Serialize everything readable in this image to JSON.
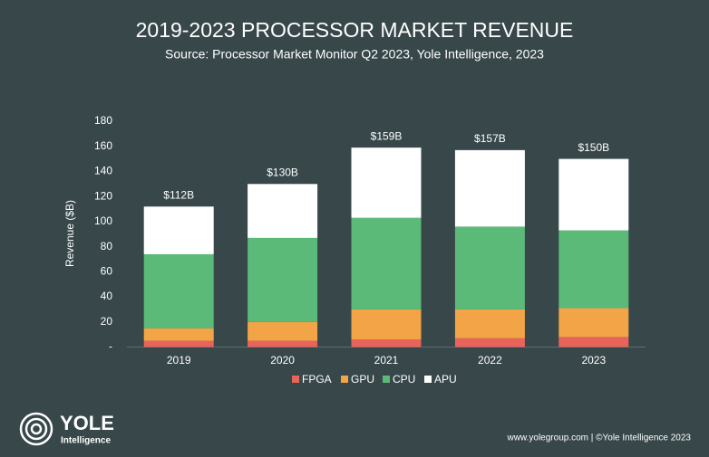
{
  "chart_data": {
    "type": "stacked-bar",
    "title": "2019-2023 PROCESSOR MARKET REVENUE",
    "subtitle": "Source: Processor Market Monitor Q2 2023, Yole Intelligence, 2023",
    "y_label": "Revenue ($B)",
    "categories": [
      "2019",
      "2020",
      "2021",
      "2022",
      "2023"
    ],
    "series": [
      {
        "name": "FPGA",
        "color": "#e8645a",
        "values": [
          5,
          5,
          6,
          7,
          8
        ]
      },
      {
        "name": "GPU",
        "color": "#f2a446",
        "values": [
          10,
          15,
          24,
          23,
          23
        ]
      },
      {
        "name": "CPU",
        "color": "#5bba78",
        "values": [
          59,
          67,
          73,
          66,
          62
        ]
      },
      {
        "name": "APU",
        "color": "#ffffff",
        "values": [
          38,
          43,
          56,
          61,
          57
        ]
      }
    ],
    "totals": {
      "values": [
        112,
        130,
        159,
        157,
        150
      ],
      "value_labels": [
        "$112B",
        "$130B",
        "$159B",
        "$157B",
        "$150B"
      ]
    },
    "ylim": [
      0,
      180
    ],
    "yticks": [
      {
        "value": 0,
        "label": "-"
      },
      20,
      40,
      60,
      80,
      100,
      120,
      140,
      160,
      180
    ],
    "grid": false
  },
  "footer": {
    "logo": "YOLE",
    "logo_sub": "Intelligence",
    "credit": "www.yolegroup.com | ©Yole Intelligence 2023"
  }
}
